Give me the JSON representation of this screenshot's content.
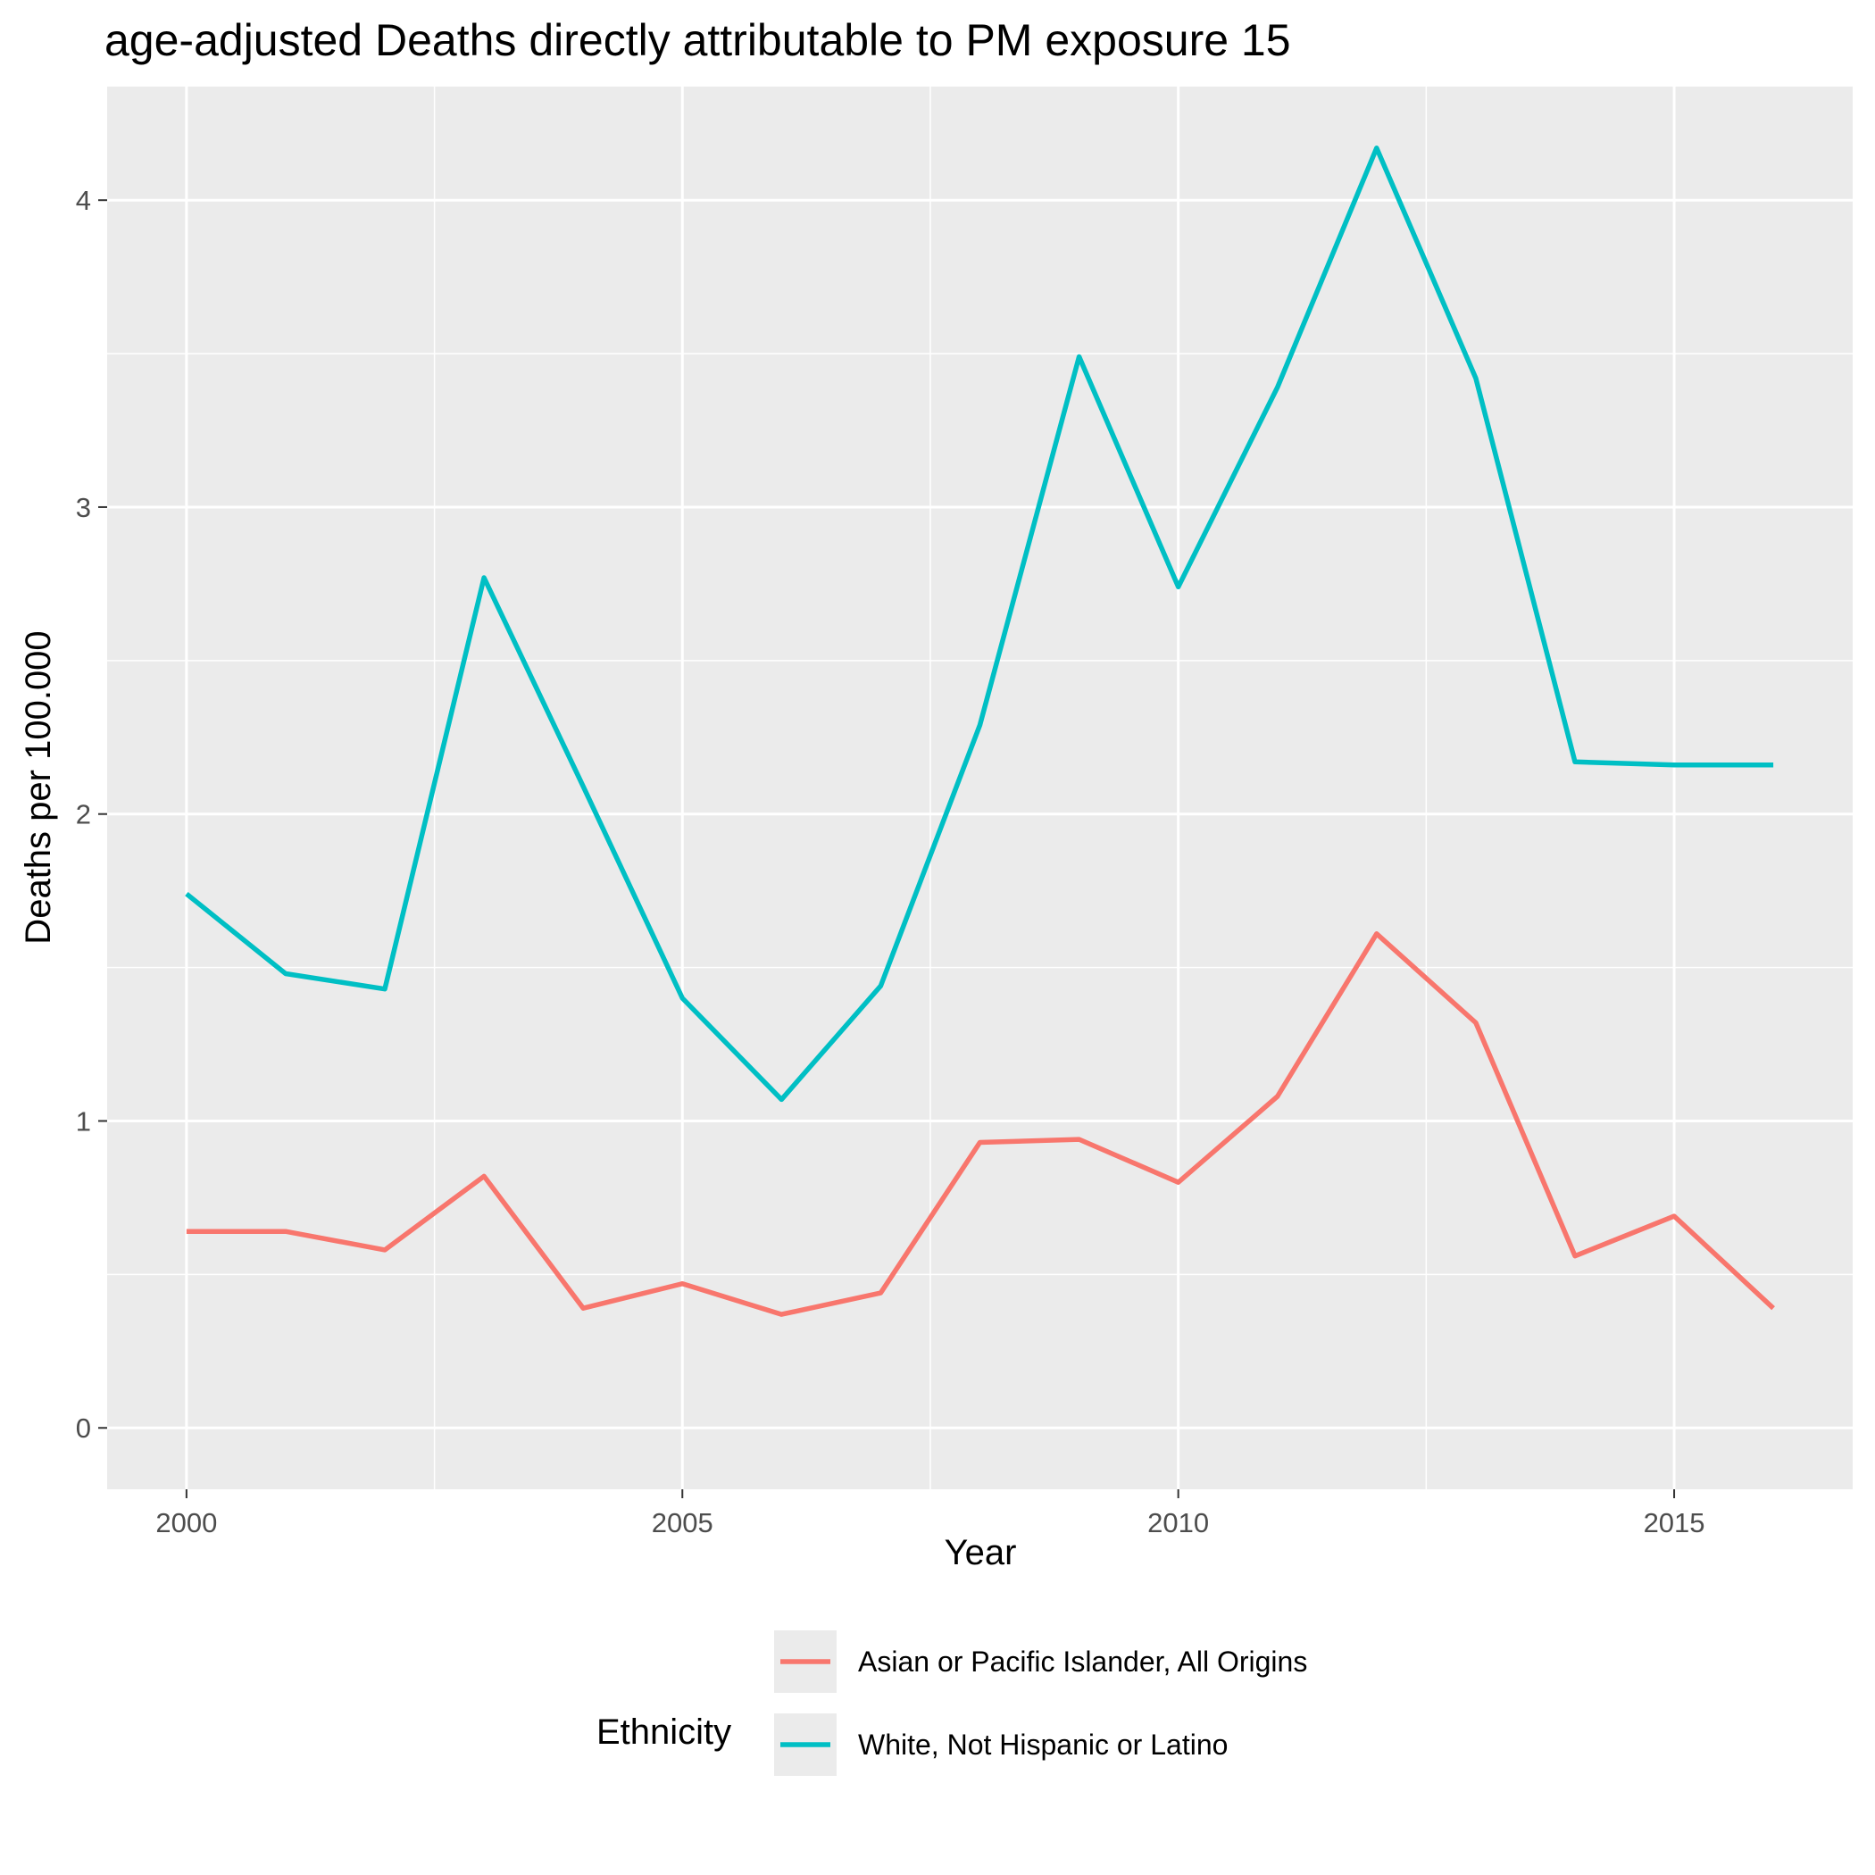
{
  "chart_data": {
    "type": "line",
    "title": "age-adjusted Deaths directly attributable to PM exposure 15",
    "xlabel": "Year",
    "ylabel": "Deaths per 100.000",
    "xlim": [
      1999.2,
      2016.8
    ],
    "ylim": [
      -0.2,
      4.37
    ],
    "x_ticks": [
      2000,
      2005,
      2010,
      2015
    ],
    "x_tick_labels": [
      "2000",
      "2005",
      "2010",
      "2015"
    ],
    "y_ticks": [
      0,
      1,
      2,
      3,
      4
    ],
    "y_tick_labels": [
      "0",
      "1",
      "2",
      "3",
      "4"
    ],
    "grid": true,
    "legend_title": "Ethnicity",
    "legend_position": "bottom",
    "x": [
      2000,
      2001,
      2002,
      2003,
      2004,
      2005,
      2006,
      2007,
      2008,
      2009,
      2010,
      2011,
      2012,
      2013,
      2014,
      2015,
      2016
    ],
    "series": [
      {
        "name": "Asian or Pacific Islander, All Origins",
        "color": "#F8766D",
        "values": [
          0.64,
          0.64,
          0.58,
          0.82,
          0.39,
          0.47,
          0.37,
          0.44,
          0.93,
          0.94,
          0.8,
          1.08,
          1.61,
          1.32,
          0.56,
          0.69,
          0.39
        ]
      },
      {
        "name": "White, Not Hispanic or Latino",
        "color": "#00BFC4",
        "values": [
          1.74,
          1.48,
          1.43,
          2.77,
          2.09,
          1.4,
          1.07,
          1.44,
          2.29,
          3.49,
          2.74,
          3.39,
          4.17,
          3.42,
          2.17,
          2.16,
          2.16
        ]
      }
    ]
  }
}
